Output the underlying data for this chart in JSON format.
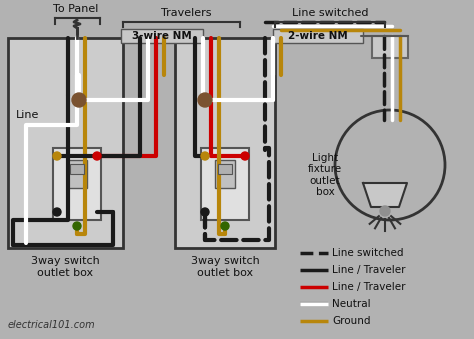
{
  "bg_color": "#b2b2b2",
  "fig_w": 4.74,
  "fig_h": 3.39,
  "dpi": 100,
  "labels": {
    "to_panel": "To Panel",
    "travelers": "Travelers",
    "line_switched": "Line switched",
    "wire_3nm": "3-wire NM",
    "wire_2nm": "2-wire NM",
    "line": "Line",
    "box1": "3way switch\noutlet box",
    "box2": "3way switch\noutlet box",
    "light_box": "Light\nfixture\noutlet\nbox",
    "website": "electrical101.com",
    "legend_dashed": "Line switched",
    "legend_black": "Line / Traveler",
    "legend_red": "Line / Traveler",
    "legend_white": "Neutral",
    "legend_gold": "Ground"
  },
  "colors": {
    "black": "#1a1a1a",
    "red": "#cc0000",
    "white": "#ffffff",
    "gold": "#b8860b",
    "green": "#336600",
    "brown": "#7a5230",
    "box_fill": "#cccccc",
    "box_edge": "#333333",
    "switch_fill": "#e0e0e0",
    "switch_edge": "#555555",
    "cable_fill": "#bbbbbb",
    "cable_edge": "#666666",
    "toggle_fill": "#c0c0c0",
    "toggle_edge": "#555555",
    "wire_outline": "#888888"
  }
}
